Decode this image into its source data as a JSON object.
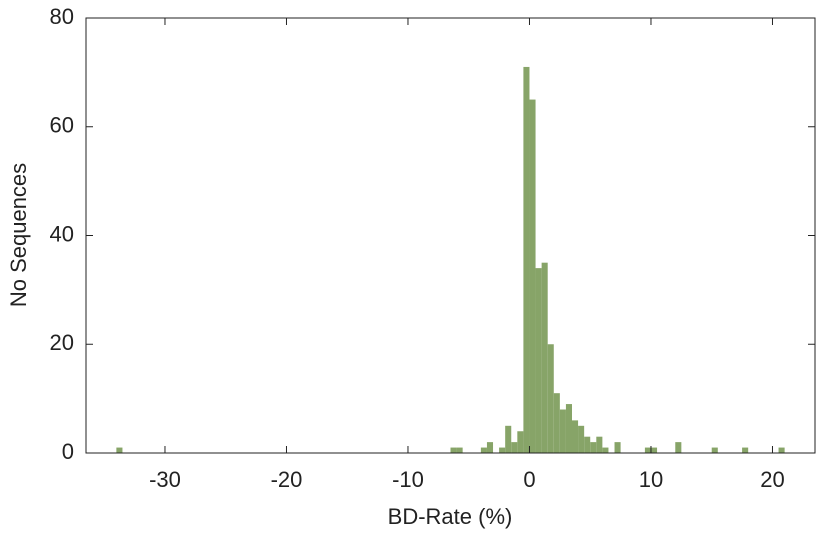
{
  "chart_data": {
    "type": "histogram",
    "xlabel": "BD-Rate (%)",
    "ylabel": "No Sequences",
    "color": "#87a468",
    "bins": [
      -34,
      -33.5,
      -33,
      -32.5,
      -32,
      -31.5,
      -31,
      -30.5,
      -30,
      -29.5,
      -29,
      -28.5,
      -28,
      -27.5,
      -27,
      -26.5,
      -26,
      -25.5,
      -25,
      -24.5,
      -24,
      -23.5,
      -23,
      -22.5,
      -22,
      -21.5,
      -21,
      -20.5,
      -20,
      -19.5,
      -19,
      -18.5,
      -18,
      -17.5,
      -17,
      -16.5,
      -16,
      -15.5,
      -15,
      -14.5,
      -14,
      -13.5,
      -13,
      -12.5,
      -12,
      -11.5,
      -11,
      -10.5,
      -10,
      -9.5,
      -9,
      -8.5,
      -8,
      -7.5,
      -7,
      -6.5,
      -6,
      -5.5,
      -5,
      -4.5,
      -4,
      -3.5,
      -3,
      -2.5,
      -2,
      -1.5,
      -1,
      -0.5,
      0,
      0.5,
      1,
      1.5,
      2,
      2.5,
      3,
      3.5,
      4,
      4.5,
      5,
      5.5,
      6,
      6.5,
      7,
      7.5,
      8,
      8.5,
      9,
      9.5,
      10,
      10.5,
      11,
      11.5,
      12,
      12.5,
      13,
      13.5,
      14,
      14.5,
      15,
      15.5,
      16,
      16.5,
      17,
      17.5,
      18,
      18.5,
      19,
      19.5,
      20,
      20.5,
      21
    ],
    "values": [
      1,
      0,
      0,
      0,
      0,
      0,
      0,
      0,
      0,
      0,
      0,
      0,
      0,
      0,
      0,
      0,
      0,
      0,
      0,
      0,
      0,
      0,
      0,
      0,
      0,
      0,
      0,
      0,
      0,
      0,
      0,
      0,
      0,
      0,
      0,
      0,
      0,
      0,
      0,
      0,
      0,
      0,
      0,
      0,
      0,
      0,
      0,
      0,
      0,
      0,
      0,
      0,
      0,
      0,
      0,
      1,
      1,
      0,
      0,
      0,
      1,
      2,
      0,
      1,
      5,
      2,
      4,
      71,
      65,
      34,
      35,
      20,
      11,
      8,
      9,
      6,
      5,
      3,
      2,
      3,
      1,
      0,
      2,
      0,
      0,
      0,
      0,
      1,
      1,
      0,
      0,
      0,
      2,
      0,
      0,
      0,
      0,
      0,
      1,
      0,
      0,
      0,
      0,
      1,
      0,
      0,
      0,
      0,
      0,
      1
    ],
    "xlim": [
      -36.5,
      23.5
    ],
    "xticks": [
      -30,
      -20,
      -10,
      0,
      10,
      20
    ],
    "ylim": [
      0,
      80
    ],
    "yticks": [
      0,
      20,
      40,
      60,
      80
    ]
  }
}
